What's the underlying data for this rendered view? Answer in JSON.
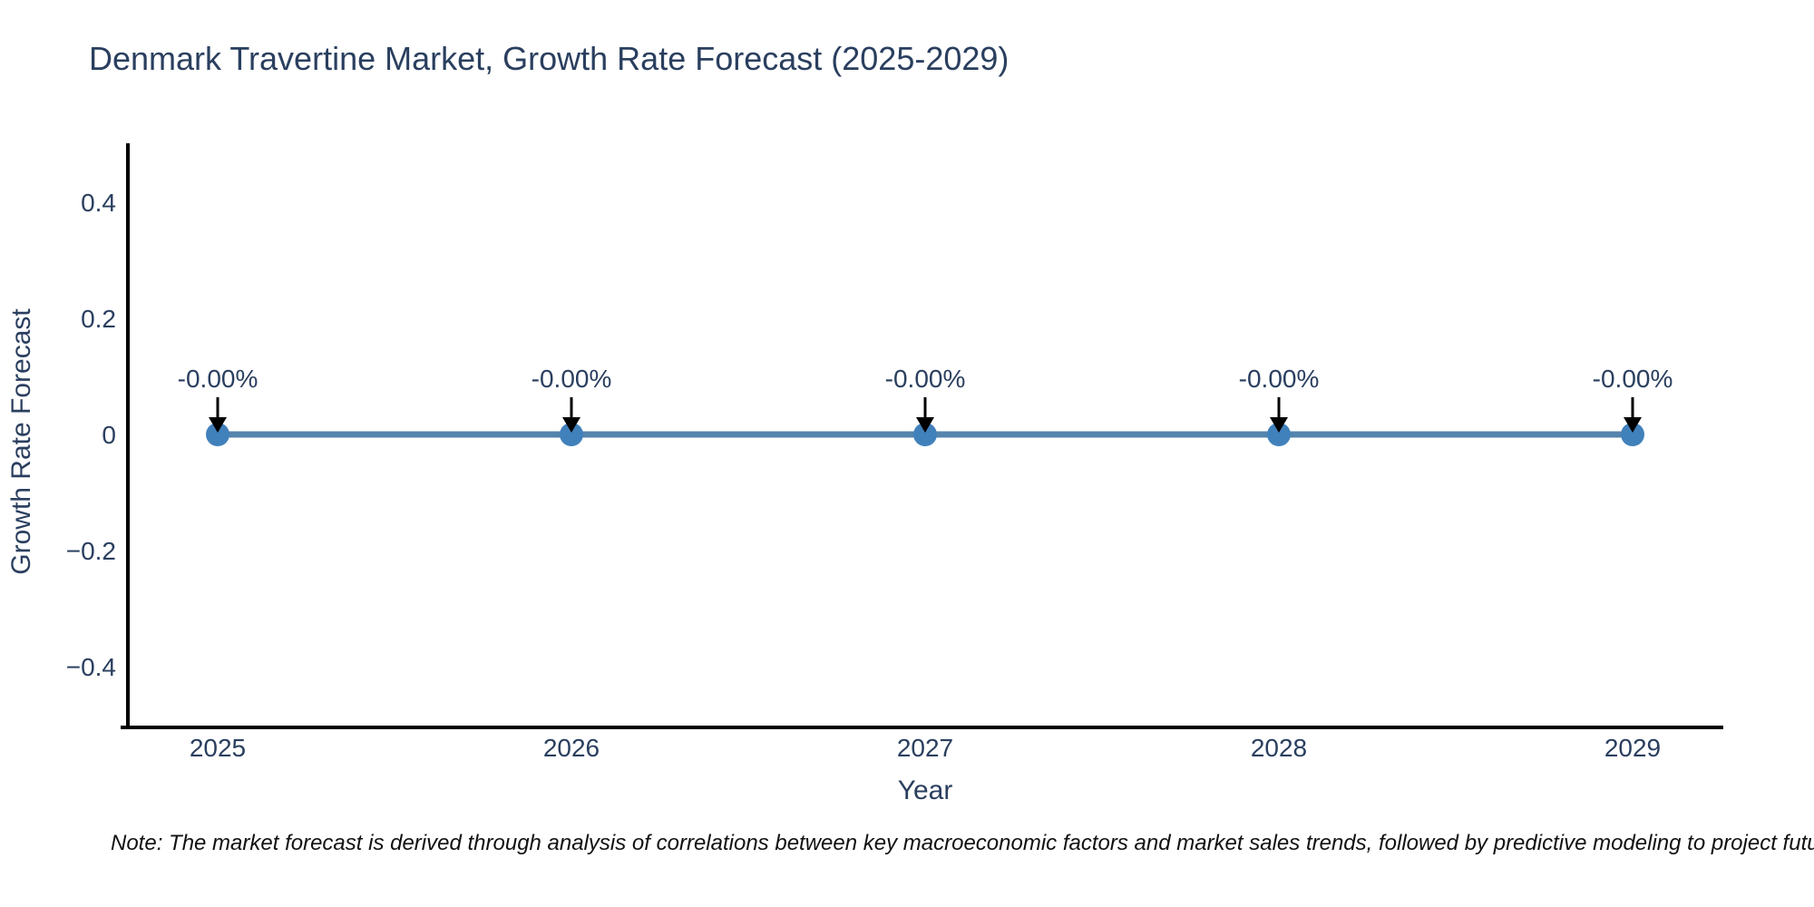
{
  "title": "Denmark Travertine Market, Growth Rate Forecast (2025-2029)",
  "note": "Note: The market forecast is derived through analysis of correlations between key macroeconomic factors and market sales trends, followed by predictive modeling to project future sa",
  "chart_data": {
    "type": "line",
    "title": "Denmark Travertine Market, Growth Rate Forecast (2025-2029)",
    "xlabel": "Year",
    "ylabel": "Growth Rate Forecast",
    "x": [
      2025,
      2026,
      2027,
      2028,
      2029
    ],
    "x_tick_labels": [
      "2025",
      "2026",
      "2027",
      "2028",
      "2029"
    ],
    "series": [
      {
        "name": "Growth Rate Forecast",
        "values": [
          0,
          0,
          0,
          0,
          0
        ],
        "point_labels": [
          "-0.00%",
          "-0.00%",
          "-0.00%",
          "-0.00%",
          "-0.00%"
        ]
      }
    ],
    "y_ticks": [
      0.4,
      0.2,
      0,
      -0.2,
      -0.4
    ],
    "y_tick_labels": [
      "0.4",
      "0.2",
      "0",
      "−0.2",
      "−0.4"
    ],
    "ylim": [
      -0.5,
      0.5
    ],
    "grid": false,
    "legend_position": "none",
    "annotations_have_arrows": true,
    "colors": {
      "line": "#5584ad",
      "marker": "#4181bb",
      "axis": "#000000",
      "text": "#2a3f5f",
      "arrow": "#000000",
      "note_text": "#111111"
    }
  }
}
